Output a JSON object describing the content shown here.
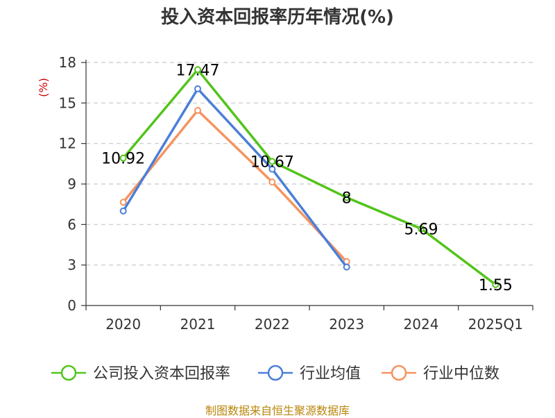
{
  "title": "投入资本回报率历年情况(%)",
  "footer": "制图数据来自恒生聚源数据库",
  "chart_data": {
    "type": "line",
    "title": "投入资本回报率历年情况(%)",
    "ylabel": "(%)",
    "xlabel": "",
    "categories": [
      "2020",
      "2021",
      "2022",
      "2023",
      "2024",
      "2025Q1"
    ],
    "ylim": [
      0,
      18
    ],
    "yticks": [
      0,
      3,
      6,
      9,
      12,
      15,
      18
    ],
    "grid": true,
    "legend_position": "bottom",
    "series": [
      {
        "name": "公司投入资本回报率",
        "color": "#52c41a",
        "values": [
          10.92,
          17.47,
          10.67,
          8,
          5.69,
          1.55
        ],
        "labels": [
          "10.92",
          "17.47",
          "10.67",
          "8",
          "5.69",
          "1.55"
        ]
      },
      {
        "name": "行业均值",
        "color": "#4a7fd8",
        "values": [
          7.0,
          16.05,
          10.1,
          2.85,
          null,
          null
        ]
      },
      {
        "name": "行业中位数",
        "color": "#f5945f",
        "values": [
          7.65,
          14.45,
          9.15,
          3.25,
          null,
          null
        ]
      }
    ]
  }
}
